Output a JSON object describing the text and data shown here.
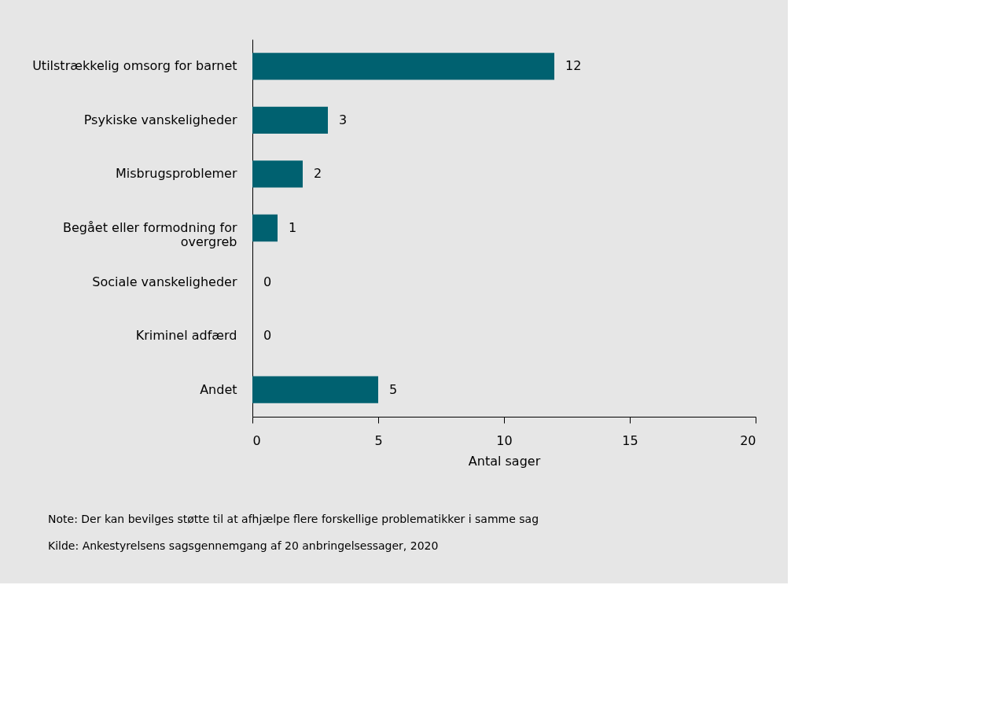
{
  "chart_data": {
    "type": "bar",
    "orientation": "horizontal",
    "categories": [
      "Utilstrækkelig omsorg for barnet",
      "Psykiske vanskeligheder",
      "Misbrugsproblemer",
      "Begået eller formodning for overgreb",
      "Sociale vanskeligheder",
      "Kriminel adfærd",
      "Andet"
    ],
    "values": [
      12,
      3,
      2,
      1,
      0,
      0,
      5
    ],
    "color": "#006170",
    "xlabel": "Antal sager",
    "xlim": [
      0,
      20
    ],
    "xticks": [
      0,
      5,
      10,
      15,
      20
    ],
    "data_labels": true,
    "grid": false,
    "annotations": [
      "Note:  Der kan bevilges støtte til at afhjælpe flere forskellige problematikker i samme sag",
      "Kilde:  Ankestyrelsens sagsgennemgang af 20 anbringelsessager, 2020"
    ]
  }
}
